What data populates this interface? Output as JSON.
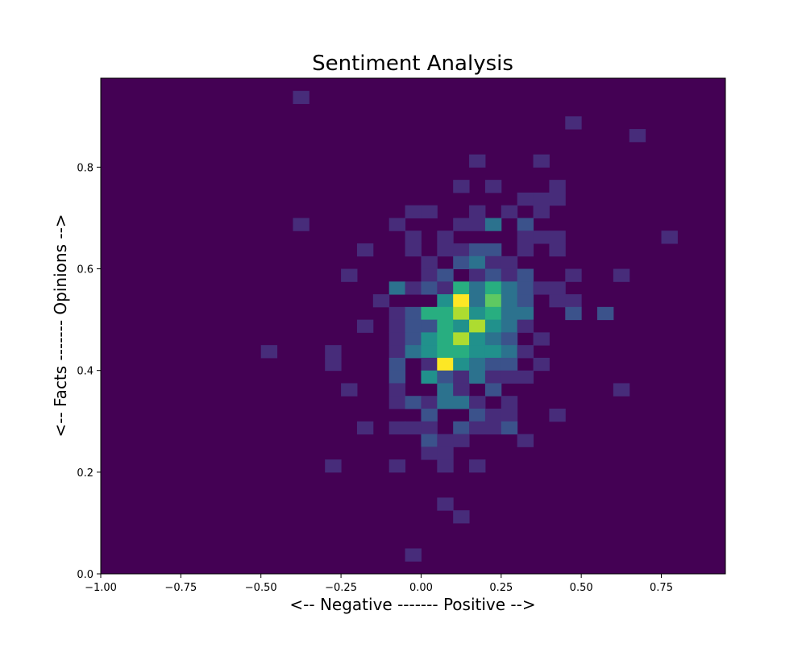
{
  "chart_data": {
    "type": "heatmap",
    "title": "Sentiment Analysis",
    "xlabel": "<-- Negative ------- Positive -->",
    "ylabel": "<-- Facts ------- Opinions -->",
    "xlim": [
      -1.0,
      0.95
    ],
    "ylim": [
      0.0,
      0.975
    ],
    "x_bin_start": -1.0,
    "x_bin_width": 0.05,
    "y_bin_start": 0.0,
    "y_bin_width": 0.025,
    "x_ticks": [
      {
        "value": -1.0,
        "label": "−1.00"
      },
      {
        "value": -0.75,
        "label": "−0.75"
      },
      {
        "value": -0.5,
        "label": "−0.50"
      },
      {
        "value": -0.25,
        "label": "−0.25"
      },
      {
        "value": 0.0,
        "label": "0.00"
      },
      {
        "value": 0.25,
        "label": "0.25"
      },
      {
        "value": 0.5,
        "label": "0.50"
      },
      {
        "value": 0.75,
        "label": "0.75"
      }
    ],
    "y_ticks": [
      {
        "value": 0.0,
        "label": "0.0"
      },
      {
        "value": 0.2,
        "label": "0.2"
      },
      {
        "value": 0.4,
        "label": "0.4"
      },
      {
        "value": 0.6,
        "label": "0.6"
      },
      {
        "value": 0.8,
        "label": "0.8"
      }
    ],
    "colormap": "viridis",
    "background_color": "#440154",
    "max_count": 8,
    "grid": false,
    "legend": "none",
    "cells": [
      {
        "x": -0.4,
        "y": 0.925,
        "count": 1
      },
      {
        "x": 0.45,
        "y": 0.875,
        "count": 1
      },
      {
        "x": 0.65,
        "y": 0.85,
        "count": 1
      },
      {
        "x": 0.15,
        "y": 0.8,
        "count": 1
      },
      {
        "x": 0.35,
        "y": 0.8,
        "count": 1
      },
      {
        "x": 0.1,
        "y": 0.75,
        "count": 1
      },
      {
        "x": 0.2,
        "y": 0.75,
        "count": 1
      },
      {
        "x": 0.4,
        "y": 0.75,
        "count": 1
      },
      {
        "x": 0.3,
        "y": 0.725,
        "count": 1
      },
      {
        "x": 0.35,
        "y": 0.725,
        "count": 1
      },
      {
        "x": 0.4,
        "y": 0.725,
        "count": 1
      },
      {
        "x": -0.05,
        "y": 0.7,
        "count": 1
      },
      {
        "x": 0.0,
        "y": 0.7,
        "count": 1
      },
      {
        "x": 0.15,
        "y": 0.7,
        "count": 1
      },
      {
        "x": 0.25,
        "y": 0.7,
        "count": 1
      },
      {
        "x": 0.35,
        "y": 0.7,
        "count": 1
      },
      {
        "x": -0.4,
        "y": 0.675,
        "count": 1
      },
      {
        "x": -0.1,
        "y": 0.675,
        "count": 1
      },
      {
        "x": 0.1,
        "y": 0.675,
        "count": 1
      },
      {
        "x": 0.15,
        "y": 0.675,
        "count": 1
      },
      {
        "x": 0.2,
        "y": 0.675,
        "count": 3
      },
      {
        "x": 0.3,
        "y": 0.675,
        "count": 2
      },
      {
        "x": -0.05,
        "y": 0.65,
        "count": 1
      },
      {
        "x": 0.05,
        "y": 0.65,
        "count": 1
      },
      {
        "x": 0.3,
        "y": 0.65,
        "count": 1
      },
      {
        "x": 0.35,
        "y": 0.65,
        "count": 1
      },
      {
        "x": 0.4,
        "y": 0.65,
        "count": 1
      },
      {
        "x": 0.75,
        "y": 0.65,
        "count": 1
      },
      {
        "x": -0.2,
        "y": 0.625,
        "count": 1
      },
      {
        "x": -0.05,
        "y": 0.625,
        "count": 1
      },
      {
        "x": 0.05,
        "y": 0.625,
        "count": 1
      },
      {
        "x": 0.1,
        "y": 0.625,
        "count": 1
      },
      {
        "x": 0.15,
        "y": 0.625,
        "count": 2
      },
      {
        "x": 0.2,
        "y": 0.625,
        "count": 2
      },
      {
        "x": 0.3,
        "y": 0.625,
        "count": 1
      },
      {
        "x": 0.4,
        "y": 0.625,
        "count": 1
      },
      {
        "x": 0.0,
        "y": 0.6,
        "count": 1
      },
      {
        "x": 0.1,
        "y": 0.6,
        "count": 2
      },
      {
        "x": 0.15,
        "y": 0.6,
        "count": 3
      },
      {
        "x": 0.2,
        "y": 0.6,
        "count": 1
      },
      {
        "x": 0.25,
        "y": 0.6,
        "count": 1
      },
      {
        "x": -0.25,
        "y": 0.575,
        "count": 1
      },
      {
        "x": 0.0,
        "y": 0.575,
        "count": 1
      },
      {
        "x": 0.05,
        "y": 0.575,
        "count": 2
      },
      {
        "x": 0.15,
        "y": 0.575,
        "count": 1
      },
      {
        "x": 0.2,
        "y": 0.575,
        "count": 2
      },
      {
        "x": 0.25,
        "y": 0.575,
        "count": 1
      },
      {
        "x": 0.3,
        "y": 0.575,
        "count": 2
      },
      {
        "x": 0.45,
        "y": 0.575,
        "count": 1
      },
      {
        "x": 0.6,
        "y": 0.575,
        "count": 1
      },
      {
        "x": -0.1,
        "y": 0.55,
        "count": 3
      },
      {
        "x": -0.05,
        "y": 0.55,
        "count": 1
      },
      {
        "x": 0.0,
        "y": 0.55,
        "count": 2
      },
      {
        "x": 0.05,
        "y": 0.55,
        "count": 1
      },
      {
        "x": 0.1,
        "y": 0.55,
        "count": 5
      },
      {
        "x": 0.15,
        "y": 0.55,
        "count": 3
      },
      {
        "x": 0.2,
        "y": 0.55,
        "count": 5
      },
      {
        "x": 0.25,
        "y": 0.55,
        "count": 3
      },
      {
        "x": 0.3,
        "y": 0.55,
        "count": 2
      },
      {
        "x": 0.35,
        "y": 0.55,
        "count": 1
      },
      {
        "x": 0.4,
        "y": 0.55,
        "count": 1
      },
      {
        "x": -0.15,
        "y": 0.525,
        "count": 1
      },
      {
        "x": 0.05,
        "y": 0.525,
        "count": 4
      },
      {
        "x": 0.1,
        "y": 0.525,
        "count": 8
      },
      {
        "x": 0.15,
        "y": 0.525,
        "count": 3
      },
      {
        "x": 0.2,
        "y": 0.525,
        "count": 6
      },
      {
        "x": 0.25,
        "y": 0.525,
        "count": 3
      },
      {
        "x": 0.3,
        "y": 0.525,
        "count": 2
      },
      {
        "x": 0.4,
        "y": 0.525,
        "count": 1
      },
      {
        "x": 0.45,
        "y": 0.525,
        "count": 1
      },
      {
        "x": -0.1,
        "y": 0.5,
        "count": 1
      },
      {
        "x": -0.05,
        "y": 0.5,
        "count": 2
      },
      {
        "x": 0.0,
        "y": 0.5,
        "count": 5
      },
      {
        "x": 0.05,
        "y": 0.5,
        "count": 5
      },
      {
        "x": 0.1,
        "y": 0.5,
        "count": 7
      },
      {
        "x": 0.15,
        "y": 0.5,
        "count": 4
      },
      {
        "x": 0.2,
        "y": 0.5,
        "count": 5
      },
      {
        "x": 0.25,
        "y": 0.5,
        "count": 3
      },
      {
        "x": 0.3,
        "y": 0.5,
        "count": 3
      },
      {
        "x": 0.45,
        "y": 0.5,
        "count": 2
      },
      {
        "x": 0.55,
        "y": 0.5,
        "count": 2
      },
      {
        "x": -0.2,
        "y": 0.475,
        "count": 1
      },
      {
        "x": -0.1,
        "y": 0.475,
        "count": 1
      },
      {
        "x": -0.05,
        "y": 0.475,
        "count": 2
      },
      {
        "x": 0.0,
        "y": 0.475,
        "count": 2
      },
      {
        "x": 0.05,
        "y": 0.475,
        "count": 5
      },
      {
        "x": 0.1,
        "y": 0.475,
        "count": 4
      },
      {
        "x": 0.15,
        "y": 0.475,
        "count": 7
      },
      {
        "x": 0.2,
        "y": 0.475,
        "count": 4
      },
      {
        "x": 0.25,
        "y": 0.475,
        "count": 3
      },
      {
        "x": 0.3,
        "y": 0.475,
        "count": 1
      },
      {
        "x": -0.1,
        "y": 0.45,
        "count": 1
      },
      {
        "x": -0.05,
        "y": 0.45,
        "count": 2
      },
      {
        "x": 0.0,
        "y": 0.45,
        "count": 4
      },
      {
        "x": 0.05,
        "y": 0.45,
        "count": 5
      },
      {
        "x": 0.1,
        "y": 0.45,
        "count": 7
      },
      {
        "x": 0.15,
        "y": 0.45,
        "count": 4
      },
      {
        "x": 0.2,
        "y": 0.45,
        "count": 3
      },
      {
        "x": 0.25,
        "y": 0.45,
        "count": 2
      },
      {
        "x": 0.35,
        "y": 0.45,
        "count": 1
      },
      {
        "x": -0.5,
        "y": 0.425,
        "count": 1
      },
      {
        "x": -0.3,
        "y": 0.425,
        "count": 1
      },
      {
        "x": -0.1,
        "y": 0.425,
        "count": 1
      },
      {
        "x": -0.05,
        "y": 0.425,
        "count": 3
      },
      {
        "x": 0.0,
        "y": 0.425,
        "count": 4
      },
      {
        "x": 0.05,
        "y": 0.425,
        "count": 5
      },
      {
        "x": 0.1,
        "y": 0.425,
        "count": 5
      },
      {
        "x": 0.15,
        "y": 0.425,
        "count": 4
      },
      {
        "x": 0.2,
        "y": 0.425,
        "count": 4
      },
      {
        "x": 0.25,
        "y": 0.425,
        "count": 3
      },
      {
        "x": 0.3,
        "y": 0.425,
        "count": 1
      },
      {
        "x": -0.3,
        "y": 0.4,
        "count": 1
      },
      {
        "x": -0.1,
        "y": 0.4,
        "count": 2
      },
      {
        "x": 0.0,
        "y": 0.4,
        "count": 1
      },
      {
        "x": 0.05,
        "y": 0.4,
        "count": 8
      },
      {
        "x": 0.1,
        "y": 0.4,
        "count": 4
      },
      {
        "x": 0.15,
        "y": 0.4,
        "count": 3
      },
      {
        "x": 0.2,
        "y": 0.4,
        "count": 2
      },
      {
        "x": 0.25,
        "y": 0.4,
        "count": 2
      },
      {
        "x": 0.35,
        "y": 0.4,
        "count": 1
      },
      {
        "x": -0.1,
        "y": 0.375,
        "count": 2
      },
      {
        "x": 0.0,
        "y": 0.375,
        "count": 4
      },
      {
        "x": 0.05,
        "y": 0.375,
        "count": 2
      },
      {
        "x": 0.1,
        "y": 0.375,
        "count": 1
      },
      {
        "x": 0.15,
        "y": 0.375,
        "count": 3
      },
      {
        "x": 0.2,
        "y": 0.375,
        "count": 1
      },
      {
        "x": 0.25,
        "y": 0.375,
        "count": 1
      },
      {
        "x": 0.3,
        "y": 0.375,
        "count": 1
      },
      {
        "x": -0.25,
        "y": 0.35,
        "count": 1
      },
      {
        "x": -0.1,
        "y": 0.35,
        "count": 1
      },
      {
        "x": 0.05,
        "y": 0.35,
        "count": 3
      },
      {
        "x": 0.1,
        "y": 0.35,
        "count": 1
      },
      {
        "x": 0.2,
        "y": 0.35,
        "count": 2
      },
      {
        "x": 0.6,
        "y": 0.35,
        "count": 1
      },
      {
        "x": -0.1,
        "y": 0.325,
        "count": 1
      },
      {
        "x": -0.05,
        "y": 0.325,
        "count": 2
      },
      {
        "x": 0.0,
        "y": 0.325,
        "count": 1
      },
      {
        "x": 0.05,
        "y": 0.325,
        "count": 3
      },
      {
        "x": 0.1,
        "y": 0.325,
        "count": 3
      },
      {
        "x": 0.15,
        "y": 0.325,
        "count": 1
      },
      {
        "x": 0.25,
        "y": 0.325,
        "count": 1
      },
      {
        "x": 0.0,
        "y": 0.3,
        "count": 2
      },
      {
        "x": 0.15,
        "y": 0.3,
        "count": 2
      },
      {
        "x": 0.2,
        "y": 0.3,
        "count": 1
      },
      {
        "x": 0.25,
        "y": 0.3,
        "count": 1
      },
      {
        "x": 0.4,
        "y": 0.3,
        "count": 1
      },
      {
        "x": -0.2,
        "y": 0.275,
        "count": 1
      },
      {
        "x": -0.1,
        "y": 0.275,
        "count": 1
      },
      {
        "x": -0.05,
        "y": 0.275,
        "count": 1
      },
      {
        "x": 0.0,
        "y": 0.275,
        "count": 1
      },
      {
        "x": 0.1,
        "y": 0.275,
        "count": 2
      },
      {
        "x": 0.15,
        "y": 0.275,
        "count": 1
      },
      {
        "x": 0.2,
        "y": 0.275,
        "count": 1
      },
      {
        "x": 0.25,
        "y": 0.275,
        "count": 2
      },
      {
        "x": 0.0,
        "y": 0.25,
        "count": 2
      },
      {
        "x": 0.05,
        "y": 0.25,
        "count": 1
      },
      {
        "x": 0.1,
        "y": 0.25,
        "count": 1
      },
      {
        "x": 0.3,
        "y": 0.25,
        "count": 1
      },
      {
        "x": 0.0,
        "y": 0.225,
        "count": 1
      },
      {
        "x": 0.05,
        "y": 0.225,
        "count": 1
      },
      {
        "x": -0.3,
        "y": 0.2,
        "count": 1
      },
      {
        "x": -0.1,
        "y": 0.2,
        "count": 1
      },
      {
        "x": 0.05,
        "y": 0.2,
        "count": 1
      },
      {
        "x": 0.15,
        "y": 0.2,
        "count": 1
      },
      {
        "x": 0.05,
        "y": 0.125,
        "count": 1
      },
      {
        "x": 0.1,
        "y": 0.1,
        "count": 1
      },
      {
        "x": -0.05,
        "y": 0.025,
        "count": 1
      }
    ]
  }
}
